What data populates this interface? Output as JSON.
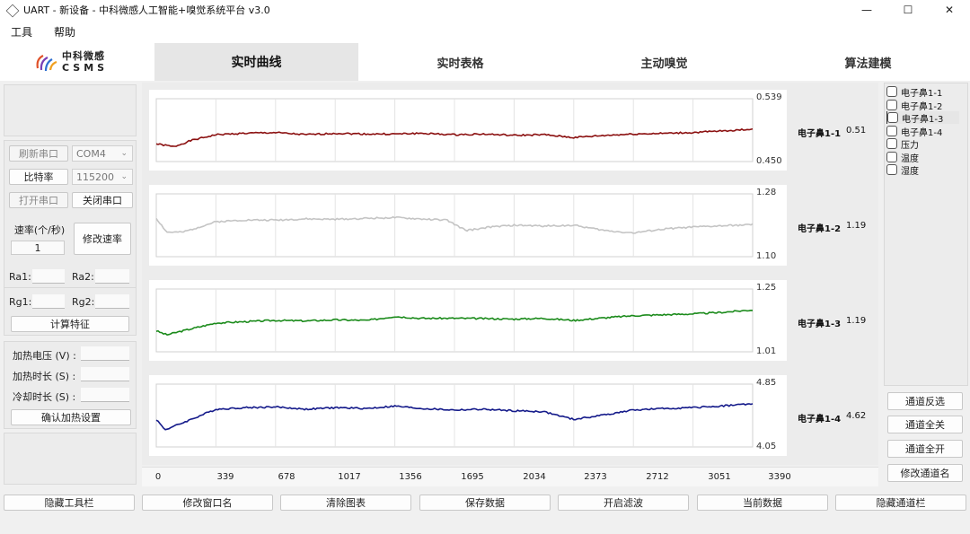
{
  "window": {
    "title": "UART - 新设备 - 中科微感人工智能+嗅觉系统平台 v3.0",
    "minimize": "—",
    "maximize": "☐",
    "close": "✕"
  },
  "menu": {
    "items": [
      "工具",
      "帮助"
    ]
  },
  "logo": {
    "cn": "中科微感",
    "en": "CSMS"
  },
  "tabs": [
    "实时曲线",
    "实时表格",
    "主动嗅觉",
    "算法建模"
  ],
  "active_tab": 0,
  "sidebar": {
    "refresh_port": "刷新串口",
    "port": "COM4",
    "baud_label": "比特率",
    "baud": "115200",
    "open_port": "打开串口",
    "close_port": "关闭串口",
    "rate_label": "速率(个/秒)",
    "rate_value": "1",
    "change_rate": "修改速率",
    "ra1": "Ra1:",
    "ra2": "Ra2:",
    "rg1": "Rg1:",
    "rg2": "Rg2:",
    "calc_feature": "计算特征",
    "heat_voltage": "加热电压 (V) :",
    "heat_time": "加热时长 (S) :",
    "cool_time": "冷却时长 (S) :",
    "confirm_heat": "确认加热设置"
  },
  "chart_data": {
    "type": "line",
    "x_ticks": [
      "0",
      "339",
      "678",
      "1017",
      "1356",
      "1695",
      "2034",
      "2373",
      "2712",
      "3051",
      "3390"
    ],
    "xlim": [
      0,
      3390
    ],
    "series": [
      {
        "name": "电子鼻1-1",
        "value": "0.51",
        "color": "#8b1010",
        "ylim": [
          0.45,
          0.539
        ],
        "ymax_label": "0.539",
        "ymin_label": "0.450",
        "x": [
          0,
          100,
          200,
          339,
          500,
          678,
          850,
          1017,
          1200,
          1356,
          1500,
          1695,
          1850,
          2034,
          2200,
          2373,
          2550,
          2712,
          2900,
          3051,
          3200,
          3390
        ],
        "values": [
          0.475,
          0.471,
          0.48,
          0.488,
          0.49,
          0.491,
          0.488,
          0.49,
          0.489,
          0.489,
          0.49,
          0.488,
          0.489,
          0.487,
          0.488,
          0.484,
          0.487,
          0.489,
          0.49,
          0.491,
          0.493,
          0.496
        ]
      },
      {
        "name": "电子鼻1-2",
        "value": "1.19",
        "color": "#c4c4c4",
        "ylim": [
          1.1,
          1.28
        ],
        "ymax_label": "1.28",
        "ymin_label": "1.10",
        "x": [
          0,
          60,
          150,
          339,
          500,
          678,
          850,
          1017,
          1200,
          1356,
          1500,
          1650,
          1760,
          1900,
          2034,
          2200,
          2373,
          2550,
          2712,
          2900,
          3051,
          3200,
          3390
        ],
        "values": [
          1.21,
          1.17,
          1.17,
          1.2,
          1.205,
          1.205,
          1.208,
          1.207,
          1.21,
          1.212,
          1.208,
          1.205,
          1.175,
          1.185,
          1.19,
          1.188,
          1.19,
          1.175,
          1.168,
          1.18,
          1.185,
          1.188,
          1.192
        ]
      },
      {
        "name": "电子鼻1-3",
        "value": "1.19",
        "color": "#1a8a1a",
        "ylim": [
          1.01,
          1.25
        ],
        "ymax_label": "1.25",
        "ymin_label": "1.01",
        "x": [
          0,
          60,
          150,
          339,
          500,
          678,
          850,
          1017,
          1200,
          1356,
          1500,
          1695,
          1850,
          2034,
          2200,
          2373,
          2550,
          2712,
          2900,
          3051,
          3200,
          3390
        ],
        "values": [
          1.09,
          1.075,
          1.09,
          1.12,
          1.125,
          1.13,
          1.128,
          1.132,
          1.13,
          1.145,
          1.138,
          1.138,
          1.137,
          1.135,
          1.138,
          1.13,
          1.14,
          1.148,
          1.152,
          1.155,
          1.16,
          1.17
        ]
      },
      {
        "name": "电子鼻1-4",
        "value": "4.62",
        "color": "#141a8a",
        "ylim": [
          4.05,
          4.85
        ],
        "ymax_label": "4.85",
        "ymin_label": "4.05",
        "x": [
          0,
          50,
          120,
          339,
          500,
          678,
          850,
          1017,
          1200,
          1356,
          1500,
          1695,
          1850,
          2034,
          2200,
          2373,
          2550,
          2712,
          2900,
          3051,
          3200,
          3390
        ],
        "values": [
          4.4,
          4.27,
          4.33,
          4.53,
          4.55,
          4.56,
          4.53,
          4.55,
          4.54,
          4.57,
          4.54,
          4.52,
          4.53,
          4.51,
          4.5,
          4.4,
          4.46,
          4.52,
          4.54,
          4.55,
          4.57,
          4.6
        ]
      }
    ]
  },
  "channels": {
    "items": [
      "电子鼻1-1",
      "电子鼻1-2",
      "电子鼻1-3",
      "电子鼻1-4",
      "压力",
      "温度",
      "湿度"
    ],
    "invert": "通道反选",
    "all_off": "通道全关",
    "all_on": "通道全开",
    "rename": "修改通道名"
  },
  "bottom": [
    "隐藏工具栏",
    "修改窗口名",
    "清除图表",
    "保存数据",
    "开启滤波",
    "当前数据",
    "隐藏通道栏"
  ]
}
